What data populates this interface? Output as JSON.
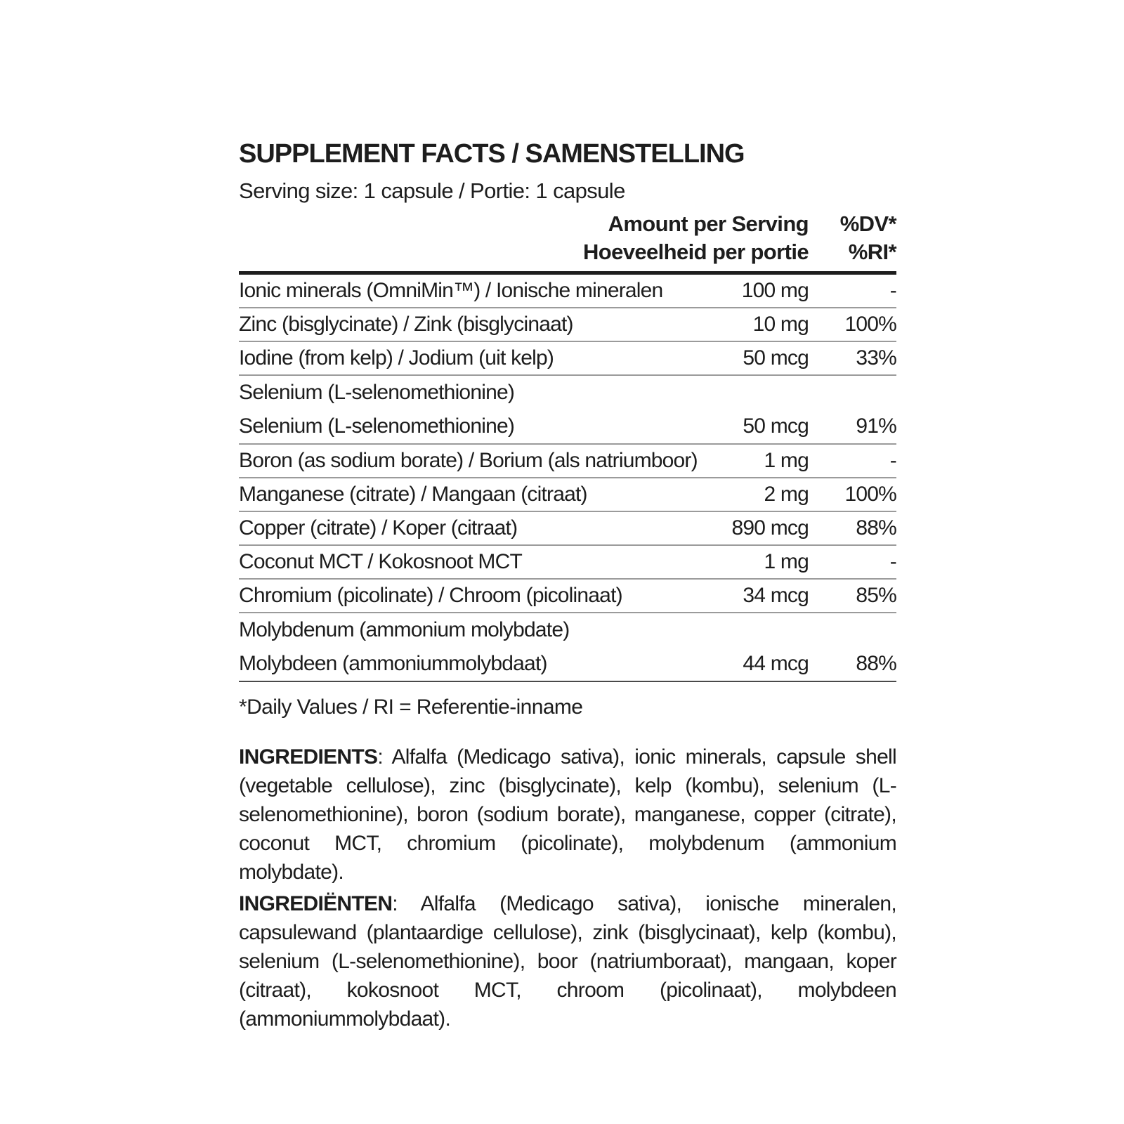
{
  "label": {
    "title": "SUPPLEMENT FACTS / SAMENSTELLING",
    "serving": "Serving size: 1 capsule / Portie: 1 capsule",
    "header": {
      "amount_en": "Amount per Serving",
      "dv_en": "%DV*",
      "amount_nl": "Hoeveelheid per portie",
      "dv_nl": "%RI*"
    },
    "table": {
      "rows": [
        {
          "name": "Ionic minerals (OmniMin™) / Ionische mineralen",
          "amount": "100 mg",
          "dv": "-"
        },
        {
          "name": "Zinc (bisglycinate) / Zink (bisglycinaat)",
          "amount": "10 mg",
          "dv": "100%"
        },
        {
          "name": "Iodine (from kelp) / Jodium (uit kelp)",
          "amount": "50 mcg",
          "dv": "33%"
        },
        {
          "name_line1": "Selenium (L-selenomethionine)",
          "name_line2": "Selenium (L-selenomethionine)",
          "amount": "50 mcg",
          "dv": "91%"
        },
        {
          "name": "Boron (as sodium borate) / Borium (als natriumboor)",
          "amount": "1 mg",
          "dv": "-"
        },
        {
          "name": "Manganese (citrate) / Mangaan (citraat)",
          "amount": "2 mg",
          "dv": "100%"
        },
        {
          "name": "Copper (citrate) / Koper (citraat)",
          "amount": "890 mcg",
          "dv": "88%"
        },
        {
          "name": "Coconut MCT / Kokosnoot MCT",
          "amount": "1 mg",
          "dv": "-"
        },
        {
          "name": "Chromium (picolinate) / Chroom (picolinaat)",
          "amount": "34 mcg",
          "dv": "85%"
        },
        {
          "name_line1": "Molybdenum (ammonium molybdate)",
          "name_line2": "Molybdeen (ammoniummolybdaat)",
          "amount": "44 mcg",
          "dv": "88%"
        }
      ]
    },
    "footnote": "*Daily Values / RI = Referentie-inname",
    "ingredients_en": {
      "label": "INGREDIENTS",
      "text": ": Alfalfa (Medicago sativa), ionic minerals, capsule shell (vegetable cellulose), zinc (bisglycinate), kelp (kombu), selenium (L-selenomethionine), boron (sodium borate), manganese, copper (citrate), coconut MCT, chromium (picolinate), molybdenum (ammonium molybdate)."
    },
    "ingredients_nl": {
      "label": "INGREDIËNTEN",
      "text": ": Alfalfa (Medicago sativa), ionische mineralen, capsulewand (plantaardige cellulose), zink (bisglycinaat), kelp (kombu), selenium (L-selenomethionine), boor (natriumboraat), mangaan, koper (citraat), kokosnoot MCT, chroom (picolinaat), molybdeen (ammoniummolybdaat)."
    },
    "colors": {
      "text": "#1d1d1d",
      "rule_heavy": "#1d1d1d",
      "rule_light": "#9b9b9b",
      "background": "#ffffff"
    }
  }
}
